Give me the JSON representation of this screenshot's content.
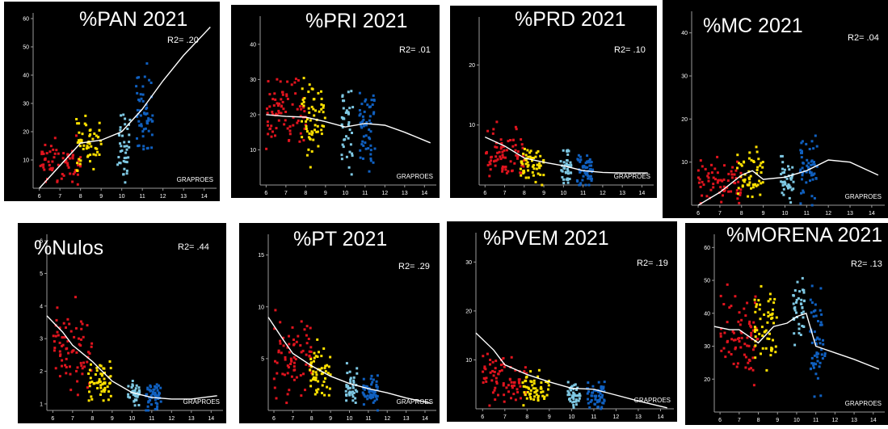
{
  "colors": {
    "background": "#000000",
    "group_colors": [
      "#e0141e",
      "#ffe100",
      "#7ec8e3",
      "#1060c0"
    ],
    "trend": "#ffffff",
    "axis": "#9a9a9a",
    "text": "#ffffff"
  },
  "chart_data": [
    {
      "type": "scatter",
      "title": "%PAN 2021",
      "r2_label": "R2= .20",
      "xlabel": "GRAPROES",
      "xlim": [
        5.7,
        14.6
      ],
      "ylim": [
        0,
        62
      ],
      "xticks": [
        "6",
        "7",
        "8",
        "9",
        "10",
        "11",
        "12",
        "13",
        "14"
      ],
      "yticks": [
        "10",
        "20",
        "30",
        "40",
        "50",
        "60"
      ],
      "groups": [
        {
          "x_range": [
            6.0,
            8.0
          ],
          "y_mean": 9,
          "y_spread": 16,
          "count": 70,
          "color_index": 0
        },
        {
          "x_range": [
            7.8,
            9.0
          ],
          "y_mean": 16,
          "y_spread": 18,
          "count": 55,
          "color_index": 1
        },
        {
          "x_range": [
            9.8,
            10.4
          ],
          "y_mean": 14,
          "y_spread": 22,
          "count": 40,
          "color_index": 2
        },
        {
          "x_range": [
            10.7,
            11.5
          ],
          "y_mean": 26,
          "y_spread": 28,
          "count": 55,
          "color_index": 3
        }
      ],
      "trend": {
        "x": [
          6.0,
          7.0,
          8.0,
          9.0,
          10.0,
          11.0,
          12.0,
          13.0,
          14.3
        ],
        "y": [
          0,
          8,
          16,
          17,
          20,
          28,
          38,
          47,
          57
        ]
      }
    },
    {
      "type": "scatter",
      "title": "%PRI 2021",
      "r2_label": "R2= .01",
      "xlabel": "GRAPROES",
      "xlim": [
        5.7,
        14.6
      ],
      "ylim": [
        0,
        48
      ],
      "xticks": [
        "6",
        "7",
        "8",
        "9",
        "10",
        "11",
        "12",
        "13",
        "14"
      ],
      "yticks": [
        "10",
        "20",
        "30",
        "40"
      ],
      "groups": [
        {
          "x_range": [
            6.0,
            8.0
          ],
          "y_mean": 20,
          "y_spread": 20,
          "count": 80,
          "color_index": 0
        },
        {
          "x_range": [
            7.8,
            9.0
          ],
          "y_mean": 18,
          "y_spread": 22,
          "count": 60,
          "color_index": 1
        },
        {
          "x_range": [
            9.8,
            10.4
          ],
          "y_mean": 16,
          "y_spread": 22,
          "count": 40,
          "color_index": 2
        },
        {
          "x_range": [
            10.7,
            11.5
          ],
          "y_mean": 16,
          "y_spread": 22,
          "count": 55,
          "color_index": 3
        }
      ],
      "trend": {
        "x": [
          6.0,
          7.0,
          8.0,
          9.0,
          10.0,
          11.0,
          12.0,
          13.0,
          14.3
        ],
        "y": [
          20,
          19.5,
          19.3,
          18,
          16.5,
          17.5,
          17,
          15,
          12
        ]
      }
    },
    {
      "type": "scatter",
      "title": "%PRD 2021",
      "r2_label": "R2= .10",
      "xlabel": "GRAPROES",
      "xlim": [
        5.7,
        14.6
      ],
      "ylim": [
        0,
        28
      ],
      "xticks": [
        "6",
        "7",
        "8",
        "9",
        "10",
        "11",
        "12",
        "13",
        "14"
      ],
      "yticks": [
        "10",
        "20"
      ],
      "groups": [
        {
          "x_range": [
            6.0,
            8.0
          ],
          "y_mean": 5,
          "y_spread": 9,
          "count": 75,
          "color_index": 0
        },
        {
          "x_range": [
            7.8,
            9.0
          ],
          "y_mean": 3,
          "y_spread": 5,
          "count": 55,
          "color_index": 1
        },
        {
          "x_range": [
            9.8,
            10.4
          ],
          "y_mean": 3,
          "y_spread": 5,
          "count": 40,
          "color_index": 2
        },
        {
          "x_range": [
            10.7,
            11.5
          ],
          "y_mean": 2.5,
          "y_spread": 5,
          "count": 55,
          "color_index": 3
        }
      ],
      "trend": {
        "x": [
          6.0,
          7.0,
          8.0,
          9.0,
          10.0,
          11.0,
          12.0,
          13.0,
          14.3
        ],
        "y": [
          8,
          6.5,
          4.5,
          3.8,
          3.2,
          2.4,
          2.1,
          2.0,
          2.0
        ]
      }
    },
    {
      "type": "scatter",
      "title": "%MC 2021",
      "r2_label": "R2= .04",
      "xlabel": "GRAPROES",
      "xlim": [
        5.7,
        14.6
      ],
      "ylim": [
        0,
        45
      ],
      "xticks": [
        "6",
        "7",
        "8",
        "9",
        "10",
        "11",
        "12",
        "13",
        "14"
      ],
      "yticks": [
        "10",
        "20",
        "30",
        "40"
      ],
      "groups": [
        {
          "x_range": [
            6.0,
            8.0
          ],
          "y_mean": 5,
          "y_spread": 9,
          "count": 70,
          "color_index": 0
        },
        {
          "x_range": [
            7.8,
            9.0
          ],
          "y_mean": 7,
          "y_spread": 10,
          "count": 55,
          "color_index": 1
        },
        {
          "x_range": [
            9.8,
            10.4
          ],
          "y_mean": 6,
          "y_spread": 10,
          "count": 40,
          "color_index": 2
        },
        {
          "x_range": [
            10.7,
            11.5
          ],
          "y_mean": 8,
          "y_spread": 14,
          "count": 55,
          "color_index": 3
        }
      ],
      "trend": {
        "x": [
          6.0,
          7.0,
          8.0,
          8.5,
          9.0,
          10.0,
          11.0,
          12.0,
          13.0,
          14.3
        ],
        "y": [
          0,
          3,
          7,
          8,
          6,
          6.5,
          8,
          10.5,
          10,
          7
        ]
      }
    },
    {
      "type": "scatter",
      "title": "%Nulos",
      "r2_label": "R2= .44",
      "xlabel": "GRAPROES",
      "xlim": [
        5.7,
        14.6
      ],
      "ylim": [
        0.8,
        6.2
      ],
      "xticks": [
        "6",
        "7",
        "8",
        "9",
        "10",
        "11",
        "12",
        "13",
        "14"
      ],
      "yticks": [
        "1",
        "2",
        "3",
        "4",
        "5",
        "6"
      ],
      "groups": [
        {
          "x_range": [
            6.0,
            8.0
          ],
          "y_mean": 2.6,
          "y_spread": 2.2,
          "count": 75,
          "color_index": 0
        },
        {
          "x_range": [
            7.8,
            9.0
          ],
          "y_mean": 1.7,
          "y_spread": 1.2,
          "count": 55,
          "color_index": 1
        },
        {
          "x_range": [
            9.8,
            10.4
          ],
          "y_mean": 1.35,
          "y_spread": 0.8,
          "count": 40,
          "color_index": 2
        },
        {
          "x_range": [
            10.7,
            11.5
          ],
          "y_mean": 1.25,
          "y_spread": 0.7,
          "count": 55,
          "color_index": 3
        }
      ],
      "trend": {
        "x": [
          5.7,
          6.5,
          7.0,
          8.0,
          9.0,
          10.0,
          11.0,
          12.0,
          13.0,
          14.3
        ],
        "y": [
          3.7,
          3.2,
          2.8,
          2.3,
          1.7,
          1.35,
          1.2,
          1.15,
          1.15,
          1.25
        ]
      }
    },
    {
      "type": "scatter",
      "title": "%PT 2021",
      "r2_label": "R2= .29",
      "xlabel": "GRAPROES",
      "xlim": [
        5.7,
        14.6
      ],
      "ylim": [
        0,
        17
      ],
      "xticks": [
        "6",
        "7",
        "8",
        "9",
        "10",
        "11",
        "12",
        "13",
        "14"
      ],
      "yticks": [
        "5",
        "10",
        "15"
      ],
      "groups": [
        {
          "x_range": [
            6.0,
            8.0
          ],
          "y_mean": 5,
          "y_spread": 7,
          "count": 75,
          "color_index": 0
        },
        {
          "x_range": [
            7.8,
            9.0
          ],
          "y_mean": 3.8,
          "y_spread": 5,
          "count": 55,
          "color_index": 1
        },
        {
          "x_range": [
            9.8,
            10.4
          ],
          "y_mean": 2.3,
          "y_spread": 3.5,
          "count": 40,
          "color_index": 2
        },
        {
          "x_range": [
            10.7,
            11.5
          ],
          "y_mean": 1.8,
          "y_spread": 3,
          "count": 55,
          "color_index": 3
        }
      ],
      "trend": {
        "x": [
          5.7,
          6.5,
          7.0,
          8.0,
          9.0,
          10.0,
          11.0,
          12.0,
          13.0,
          14.3
        ],
        "y": [
          9.0,
          6.8,
          5.5,
          4.3,
          3.3,
          2.6,
          2.1,
          1.7,
          1.2,
          0.7
        ]
      }
    },
    {
      "type": "scatter",
      "title": "%PVEM 2021",
      "r2_label": "R2= .19",
      "xlabel": "GRAPROES",
      "xlim": [
        5.7,
        14.6
      ],
      "ylim": [
        0,
        36
      ],
      "xticks": [
        "6",
        "7",
        "8",
        "9",
        "10",
        "11",
        "12",
        "13",
        "14"
      ],
      "yticks": [
        "10",
        "20",
        "30"
      ],
      "groups": [
        {
          "x_range": [
            6.0,
            8.0
          ],
          "y_mean": 6,
          "y_spread": 9,
          "count": 75,
          "color_index": 0
        },
        {
          "x_range": [
            7.8,
            9.0
          ],
          "y_mean": 4,
          "y_spread": 7,
          "count": 55,
          "color_index": 1
        },
        {
          "x_range": [
            9.8,
            10.4
          ],
          "y_mean": 3,
          "y_spread": 5,
          "count": 40,
          "color_index": 2
        },
        {
          "x_range": [
            10.7,
            11.5
          ],
          "y_mean": 2.5,
          "y_spread": 5,
          "count": 55,
          "color_index": 3
        }
      ],
      "trend": {
        "x": [
          5.7,
          6.5,
          7.0,
          8.0,
          9.0,
          10.0,
          11.0,
          12.0,
          13.0,
          14.3
        ],
        "y": [
          15.5,
          12,
          9,
          7,
          5.5,
          4.2,
          4.0,
          2.8,
          1.6,
          0.2
        ]
      }
    },
    {
      "type": "scatter",
      "title": "%MORENA 2021",
      "r2_label": "R2= .13",
      "xlabel": "GRAPROES",
      "xlim": [
        5.7,
        14.6
      ],
      "ylim": [
        10,
        64
      ],
      "xticks": [
        "6",
        "7",
        "8",
        "9",
        "10",
        "11",
        "12",
        "13",
        "14"
      ],
      "yticks": [
        "20",
        "30",
        "40",
        "50",
        "60"
      ],
      "groups": [
        {
          "x_range": [
            6.0,
            8.0
          ],
          "y_mean": 34,
          "y_spread": 22,
          "count": 75,
          "color_index": 0
        },
        {
          "x_range": [
            7.8,
            9.0
          ],
          "y_mean": 36,
          "y_spread": 22,
          "count": 55,
          "color_index": 1
        },
        {
          "x_range": [
            9.8,
            10.4
          ],
          "y_mean": 41,
          "y_spread": 18,
          "count": 40,
          "color_index": 2
        },
        {
          "x_range": [
            10.7,
            11.5
          ],
          "y_mean": 32,
          "y_spread": 26,
          "count": 55,
          "color_index": 3
        }
      ],
      "trend": {
        "x": [
          5.7,
          6.5,
          7.0,
          8.0,
          8.8,
          9.5,
          10.0,
          10.5,
          11.0,
          12.0,
          13.0,
          14.3
        ],
        "y": [
          36,
          35,
          35,
          31,
          36,
          37,
          39,
          40,
          30,
          28,
          26,
          23
        ]
      }
    }
  ]
}
